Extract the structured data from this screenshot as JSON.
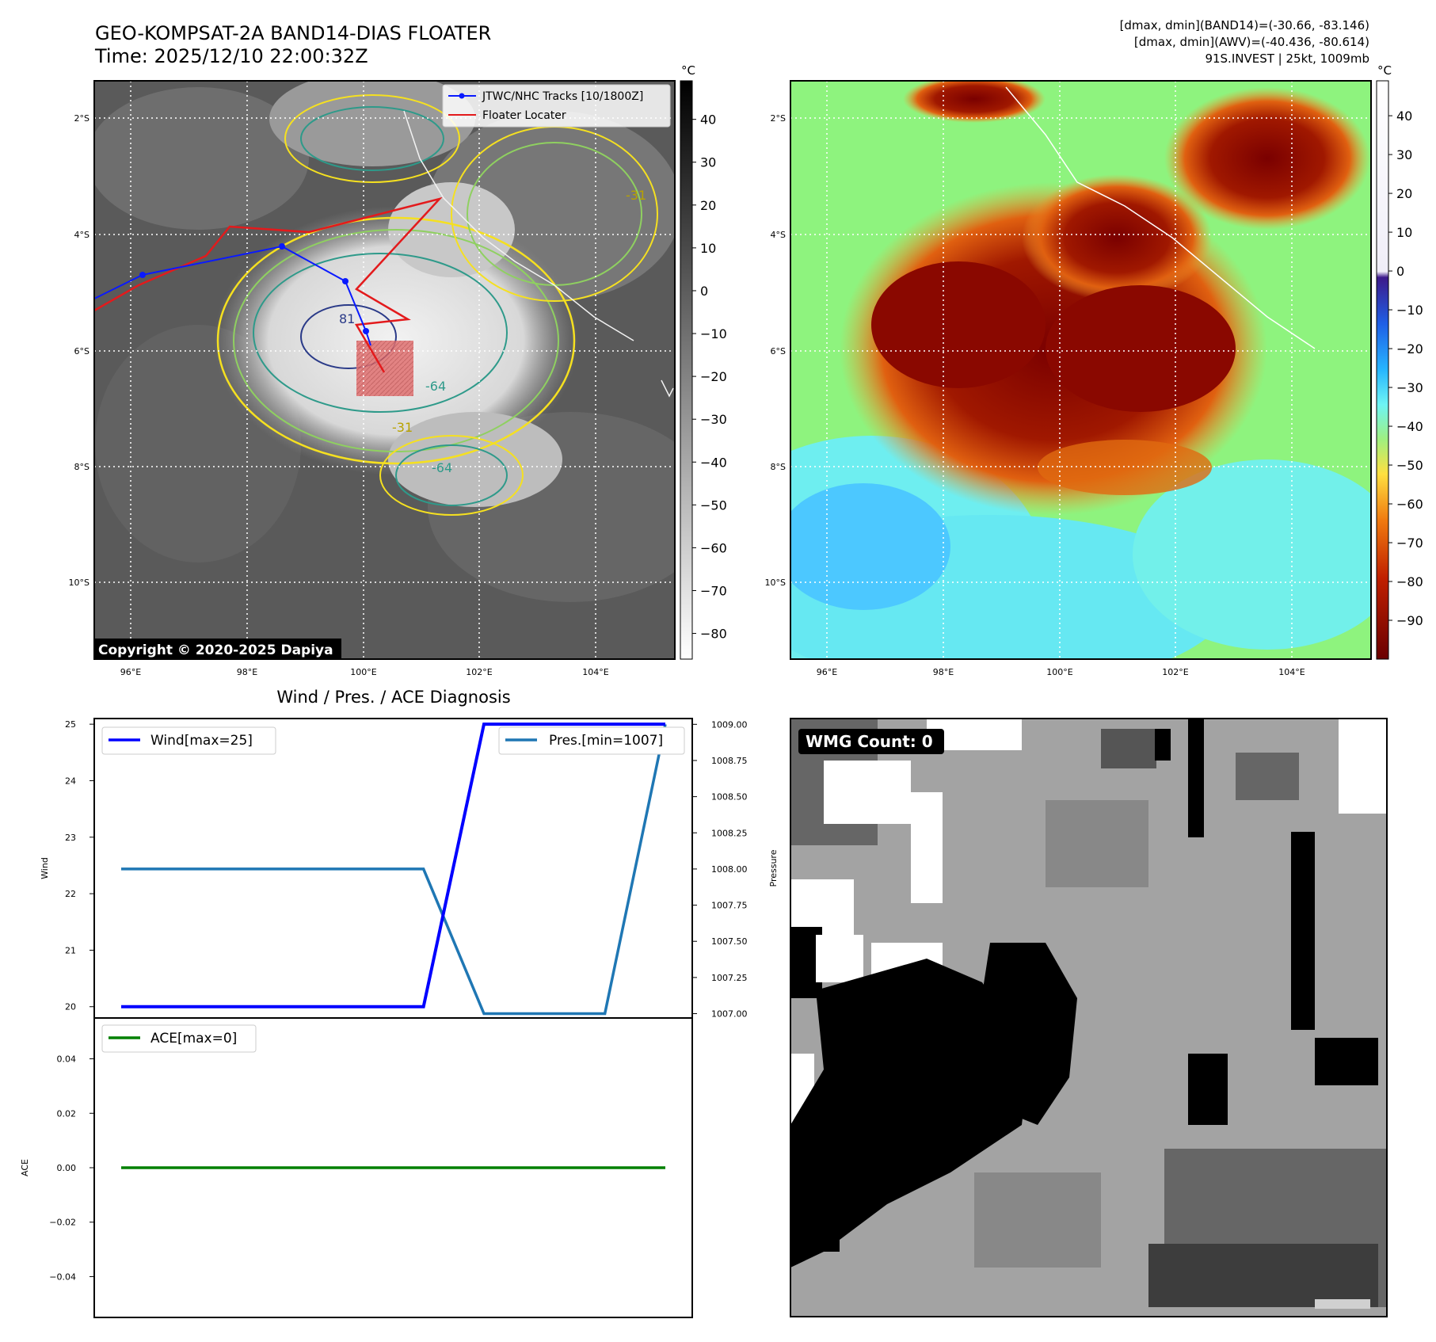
{
  "header": {
    "title": "GEO-KOMPSAT-2A BAND14-DIAS FLOATER",
    "time": "Time: 2025/12/10 22:00:32Z",
    "info1": "[dmax, dmin](BAND14)=(-30.66, -83.146)",
    "info2": "[dmax, dmin](AWV)=(-40.436, -80.614)",
    "info3": "91S.INVEST | 25kt, 1009mb"
  },
  "maps": {
    "lat_labels": [
      "2°S",
      "4°S",
      "6°S",
      "8°S",
      "10°S"
    ],
    "lon_labels": [
      "96°E",
      "98°E",
      "100°E",
      "102°E",
      "104°E"
    ],
    "copyright": "Copyright © 2020-2025 Dapiya",
    "legend": [
      "JTWC/NHC Tracks [10/1800Z]",
      "Floater Locater"
    ],
    "contour_labels": [
      "81",
      "-64",
      "-64",
      "-31",
      "-31"
    ],
    "cbar_unit": "°C",
    "cbar1_ticks": [
      "40",
      "30",
      "20",
      "10",
      "0",
      "−10",
      "−20",
      "−30",
      "−40",
      "−50",
      "−60",
      "−70",
      "−80"
    ],
    "cbar2_ticks": [
      "40",
      "30",
      "20",
      "10",
      "0",
      "−10",
      "−20",
      "−30",
      "−40",
      "−50",
      "−60",
      "−70",
      "−80",
      "−90"
    ]
  },
  "colors": {
    "track": "#0a1aff",
    "locater": "#e31a1c",
    "wind": "#0000ff",
    "pres": "#1f77b4",
    "ace": "#008000"
  },
  "chart_data": [
    {
      "type": "line",
      "title": "Wind / Pres. / ACE Diagnosis",
      "ylabel": "Wind",
      "y2label": "Pressure",
      "ylim": [
        19.8,
        25.1
      ],
      "y2lim": [
        1006.97,
        1009.04
      ],
      "yticks": [
        "20",
        "21",
        "22",
        "23",
        "24",
        "25"
      ],
      "y2ticks": [
        "1007.00",
        "1007.25",
        "1007.50",
        "1007.75",
        "1008.00",
        "1008.25",
        "1008.50",
        "1008.75",
        "1009.00"
      ],
      "series": [
        {
          "name": "Wind[max=25]",
          "values": [
            20,
            20,
            20,
            20,
            20,
            20,
            25,
            25,
            25,
            25
          ]
        },
        {
          "name": "Pres.[min=1007]",
          "values": [
            1008,
            1008,
            1008,
            1008,
            1008,
            1008,
            1007,
            1007,
            1007,
            1009
          ]
        }
      ]
    },
    {
      "type": "line",
      "ylabel": "ACE",
      "ylim": [
        -0.055,
        0.055
      ],
      "yticks": [
        "0.04",
        "0.02",
        "0.00",
        "−0.02",
        "−0.04"
      ],
      "series": [
        {
          "name": "ACE[max=0]",
          "values": [
            0,
            0
          ]
        }
      ]
    }
  ],
  "wmg": {
    "label": "WMG Count: 0"
  }
}
